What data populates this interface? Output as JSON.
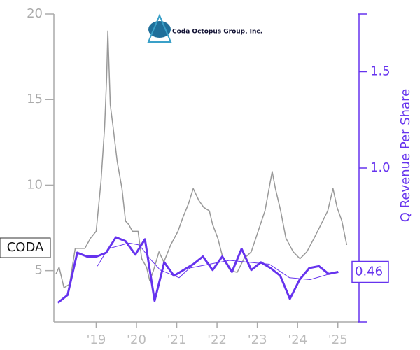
{
  "chart_data": {
    "type": "line",
    "logo_text": "Coda Octopus Group, Inc.",
    "y2_label": "Q Revenue Per Share",
    "xlim": [
      2017.95,
      2025.3
    ],
    "xticks": [
      {
        "value": 2019,
        "label": "'19"
      },
      {
        "value": 2020,
        "label": "'20"
      },
      {
        "value": 2021,
        "label": "'21"
      },
      {
        "value": 2022,
        "label": "'22"
      },
      {
        "value": 2023,
        "label": "'23"
      },
      {
        "value": 2024,
        "label": "'24"
      },
      {
        "value": 2025,
        "label": "'25"
      }
    ],
    "ylim": [
      2,
      20
    ],
    "yticks": [
      5,
      10,
      15,
      20
    ],
    "y2lim": [
      0.2,
      1.8
    ],
    "y2ticks": [
      {
        "value": 1,
        "label": "1.0"
      },
      {
        "value": 1.5,
        "label": "1.5"
      }
    ],
    "series": [
      {
        "name": "CODA",
        "color": "#999999",
        "x": [
          2018.0,
          2018.08,
          2018.2,
          2018.34,
          2018.48,
          2018.6,
          2018.72,
          2018.86,
          2019.0,
          2019.12,
          2019.21,
          2019.26,
          2019.29,
          2019.35,
          2019.42,
          2019.52,
          2019.64,
          2019.73,
          2019.81,
          2019.9,
          2020.04,
          2020.13,
          2020.25,
          2020.33,
          2020.42,
          2020.56,
          2020.68,
          2020.85,
          2021.03,
          2021.15,
          2021.29,
          2021.41,
          2021.55,
          2021.67,
          2021.81,
          2021.89,
          2022.02,
          2022.15,
          2022.33,
          2022.5,
          2022.67,
          2022.85,
          2023.02,
          2023.19,
          2023.37,
          2023.45,
          2023.58,
          2023.71,
          2023.89,
          2024.06,
          2024.23,
          2024.41,
          2024.58,
          2024.75,
          2024.88,
          2024.98,
          2025.1,
          2025.22
        ],
        "values": [
          4.8,
          5.2,
          4.0,
          4.2,
          6.3,
          6.3,
          6.3,
          6.9,
          7.3,
          10.2,
          13.4,
          16.3,
          19.0,
          14.7,
          13.4,
          11.4,
          9.8,
          7.9,
          7.7,
          7.3,
          7.3,
          5.7,
          5.2,
          4.4,
          5.0,
          6.1,
          5.5,
          6.5,
          7.3,
          8.1,
          8.9,
          9.8,
          9.1,
          8.7,
          8.5,
          7.7,
          6.9,
          5.7,
          5.0,
          4.9,
          5.7,
          6.1,
          7.3,
          8.5,
          10.8,
          9.8,
          8.5,
          6.9,
          6.1,
          5.7,
          6.1,
          6.9,
          7.7,
          8.5,
          9.8,
          8.7,
          7.9,
          6.5
        ]
      },
      {
        "color": "#6633ee",
        "axis": "y2",
        "width": 3,
        "x": [
          2018.05,
          2018.29,
          2018.53,
          2018.77,
          2019.01,
          2019.25,
          2019.49,
          2019.73,
          2019.97,
          2020.21,
          2020.45,
          2020.69,
          2020.93,
          2021.17,
          2021.41,
          2021.65,
          2021.89,
          2022.13,
          2022.37,
          2022.61,
          2022.85,
          2023.09,
          2023.33,
          2023.57,
          2023.81,
          2024.05,
          2024.29,
          2024.53,
          2024.77,
          2025.01
        ],
        "values": [
          0.3,
          0.34,
          0.56,
          0.54,
          0.54,
          0.56,
          0.64,
          0.62,
          0.55,
          0.63,
          0.31,
          0.51,
          0.44,
          0.47,
          0.5,
          0.54,
          0.47,
          0.54,
          0.46,
          0.58,
          0.47,
          0.51,
          0.48,
          0.44,
          0.32,
          0.42,
          0.48,
          0.49,
          0.45,
          0.46
        ],
        "value_labels": [
          null,
          null,
          null,
          null,
          null,
          null,
          null,
          null,
          null,
          null,
          null,
          null,
          null,
          null,
          null,
          null,
          null,
          null,
          null,
          null,
          null,
          null,
          null,
          null,
          null,
          null,
          null,
          null,
          null,
          "0.46"
        ]
      },
      {
        "color": "#6633ee",
        "axis": "y2",
        "width": 1,
        "x": [
          2019.03,
          2019.29,
          2019.81,
          2020.07,
          2020.33,
          2020.59,
          2021.06,
          2021.32,
          2021.81,
          2022.31,
          2022.8,
          2023.3,
          2023.8,
          2024.31,
          2024.8,
          2025.04
        ],
        "values": [
          0.49,
          0.58,
          0.61,
          0.6,
          0.53,
          0.47,
          0.43,
          0.48,
          0.5,
          0.52,
          0.51,
          0.5,
          0.43,
          0.42,
          0.45,
          0.46
        ]
      }
    ]
  }
}
